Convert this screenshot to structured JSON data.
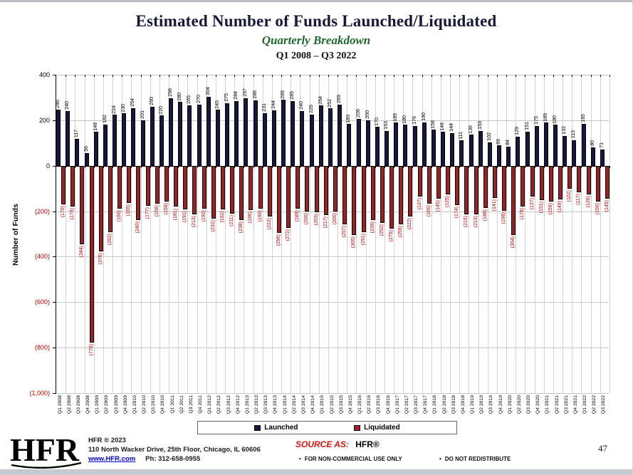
{
  "header": {
    "title": "Estimated Number of Funds Launched/Liquidated",
    "subtitle": "Quarterly Breakdown",
    "range": "Q1 2008 – Q3 2022"
  },
  "chart_data": {
    "type": "bar",
    "title": "Estimated Number of Funds Launched/Liquidated — Quarterly Breakdown Q1 2008 – Q3 2022",
    "xlabel": "",
    "ylabel": "Number of Funds",
    "ylim": [
      -1000,
      400
    ],
    "ytick_step": 200,
    "ytick_labels": [
      "400",
      "200",
      "0",
      "(200)",
      "(400)",
      "(600)",
      "(800)",
      "(1,000)"
    ],
    "grid": true,
    "legend_position": "bottom",
    "categories": [
      "Q1 2008",
      "Q2 2008",
      "Q3 2008",
      "Q4 2008",
      "Q1 2009",
      "Q2 2009",
      "Q3 2009",
      "Q4 2009",
      "Q1 2010",
      "Q2 2010",
      "Q3 2010",
      "Q4 2010",
      "Q1 2011",
      "Q2 2011",
      "Q3 2011",
      "Q4 2011",
      "Q1 2012",
      "Q2 2012",
      "Q3 2012",
      "Q4 2012",
      "Q1 2013",
      "Q2 2013",
      "Q3 2013",
      "Q4 2013",
      "Q1 2014",
      "Q2 2014",
      "Q3 2014",
      "Q4 2014",
      "Q1 2015",
      "Q2 2015",
      "Q3 2015",
      "Q4 2015",
      "Q1 2016",
      "Q2 2016",
      "Q3 2016",
      "Q4 2016",
      "Q1 2017",
      "Q2 2017",
      "Q3 2017",
      "Q4 2017",
      "Q1 2018",
      "Q2 2018",
      "Q3 2018",
      "Q4 2018",
      "Q1 2019",
      "Q2 2019",
      "Q3 2019",
      "Q4 2019",
      "Q1 2020",
      "Q2 2020",
      "Q3 2020",
      "Q4 2020",
      "Q1 2021",
      "Q2 2021",
      "Q3 2021",
      "Q4 2021",
      "Q1 2022",
      "Q2 2022",
      "Q3 2022"
    ],
    "series": [
      {
        "name": "Launched",
        "color": "#17173f",
        "values": [
          246,
          240,
          117,
          56,
          148,
          182,
          224,
          230,
          254,
          201,
          260,
          220,
          298,
          280,
          265,
          270,
          304,
          245,
          275,
          284,
          297,
          288,
          231,
          244,
          289,
          285,
          240,
          226,
          264,
          252,
          269,
          183,
          206,
          200,
          170,
          153,
          189,
          180,
          176,
          190,
          158,
          148,
          144,
          111,
          136,
          153,
          102,
          89,
          84,
          129,
          151,
          175,
          189,
          180,
          132,
          113,
          185,
          80,
          71
        ]
      },
      {
        "name": "Liquidated",
        "color": "#9e2020",
        "values": [
          -170,
          -179,
          -344,
          -778,
          -376,
          -292,
          -190,
          -165,
          -240,
          -177,
          -168,
          -158,
          -181,
          -191,
          -213,
          -190,
          -232,
          -192,
          -211,
          -238,
          -196,
          -190,
          -222,
          -296,
          -272,
          -189,
          -200,
          -203,
          -217,
          -200,
          -257,
          -305,
          -291,
          -239,
          -252,
          -275,
          -259,
          -222,
          -137,
          -166,
          -145,
          -125,
          -174,
          -215,
          -213,
          -186,
          -141,
          -198,
          -304,
          -178,
          -137,
          -151,
          -159,
          -149,
          -102,
          -117,
          -126,
          -156,
          -145
        ]
      }
    ],
    "colors": {
      "positive_label": "#000000",
      "negative_label": "#c00000",
      "gridline": "#c6c6c6"
    }
  },
  "legend": {
    "launched": "Launched",
    "liquidated": "Liquidated"
  },
  "footer": {
    "logo_text": "HFR",
    "copyright": "HFR ® 2023",
    "address": "110 North Wacker Drive, 25th Floor, Chicago, IL 60606",
    "link": "www.HFR.com",
    "phone": "Ph: 312-658-0955",
    "source_label": "SOURCE AS:",
    "source_value": "HFR®",
    "bullet1": "FOR NON-COMMERCIAL USE ONLY",
    "bullet2": "DO NOT REDISTRIBUTE",
    "page_number": "47"
  }
}
